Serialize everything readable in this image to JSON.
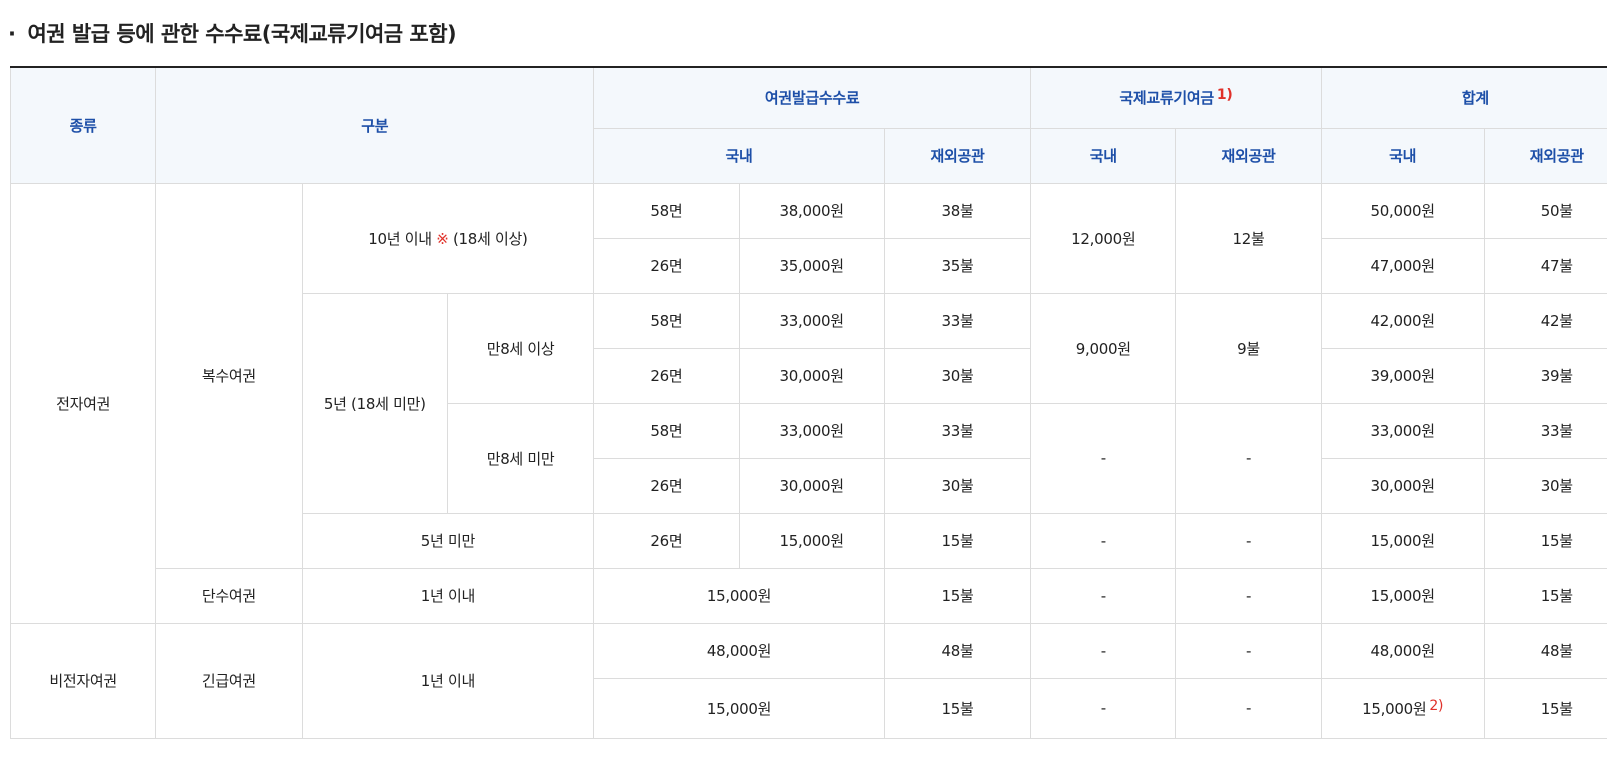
{
  "title": {
    "bullet": "·",
    "text": "여권 발급 등에 관한 수수료(국제교류기여금 포함)"
  },
  "header": {
    "kind": "종류",
    "category": "구분",
    "issue_fee": "여권발급수수료",
    "intl_contribution": "국제교류기여금",
    "intl_contribution_note": "1)",
    "total": "합계",
    "domestic": "국내",
    "overseas": "재외공관"
  },
  "rows": {
    "electronic": "전자여권",
    "multiple": "복수여권",
    "ten_years": "10년 이내",
    "ten_years_mark": "※",
    "ten_years_age": "(18세 이상)",
    "five_years": "5년 (18세 미만)",
    "age8_over": "만8세 이상",
    "age8_under": "만8세 미만",
    "under_five": "5년 미만",
    "single": "단수여권",
    "one_year": "1년 이내",
    "non_electronic": "비전자여권",
    "emergency": "긴급여권",
    "note2": "2)",
    "dash": "-"
  },
  "cells": {
    "r1": {
      "pages": "58면",
      "fee": "38,000원",
      "overseas": "38불",
      "contrib_dom": "12,000원",
      "contrib_ovs": "12불",
      "total_dom": "50,000원",
      "total_ovs": "50불"
    },
    "r2": {
      "pages": "26면",
      "fee": "35,000원",
      "overseas": "35불",
      "total_dom": "47,000원",
      "total_ovs": "47불"
    },
    "r3": {
      "pages": "58면",
      "fee": "33,000원",
      "overseas": "33불",
      "contrib_dom": "9,000원",
      "contrib_ovs": "9불",
      "total_dom": "42,000원",
      "total_ovs": "42불"
    },
    "r4": {
      "pages": "26면",
      "fee": "30,000원",
      "overseas": "30불",
      "total_dom": "39,000원",
      "total_ovs": "39불"
    },
    "r5": {
      "pages": "58면",
      "fee": "33,000원",
      "overseas": "33불",
      "total_dom": "33,000원",
      "total_ovs": "33불"
    },
    "r6": {
      "pages": "26면",
      "fee": "30,000원",
      "overseas": "30불",
      "total_dom": "30,000원",
      "total_ovs": "30불"
    },
    "r7": {
      "pages": "26면",
      "fee": "15,000원",
      "overseas": "15불",
      "total_dom": "15,000원",
      "total_ovs": "15불"
    },
    "r8": {
      "fee": "15,000원",
      "overseas": "15불",
      "total_dom": "15,000원",
      "total_ovs": "15불"
    },
    "r9": {
      "fee": "48,000원",
      "overseas": "48불",
      "total_dom": "48,000원",
      "total_ovs": "48불"
    },
    "r10": {
      "fee": "15,000원",
      "overseas": "15불",
      "total_dom": "15,000원",
      "total_ovs": "15불"
    }
  },
  "colors": {
    "header_text": "#1d4fa8",
    "header_bg": "#f4f8fc",
    "accent_red": "#e0312a",
    "border": "#dcdcdc"
  }
}
